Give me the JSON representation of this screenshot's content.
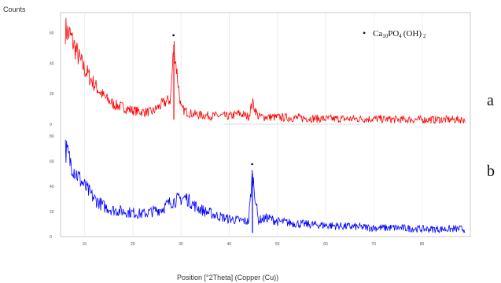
{
  "figure": {
    "ylabel": "Counts",
    "xlabel": "Position [°2Theta] (Copper (Cu))",
    "legend": {
      "marker": "•",
      "formula_base": "Ca",
      "formula_sub1": "10",
      "formula_mid": "PO",
      "formula_sub2": "4",
      "formula_end": "(OH)",
      "formula_sub3": "2"
    },
    "side_labels": [
      "a",
      "b"
    ]
  },
  "chart_data": [
    {
      "type": "line",
      "name_label": "a",
      "color": "#ff0000",
      "y_ticks": [
        "60",
        "40",
        "20",
        "0"
      ],
      "x": [
        6,
        7,
        8,
        9,
        10,
        12,
        14,
        16,
        18,
        20,
        22,
        24,
        26,
        27,
        27.8,
        28.5,
        30,
        32,
        34,
        36,
        38,
        40,
        42,
        44,
        44.8,
        46,
        50,
        55,
        60,
        65,
        70,
        75,
        80,
        85,
        89
      ],
      "y": [
        62,
        58,
        50,
        42,
        36,
        26,
        18,
        13,
        11,
        9,
        8,
        8,
        13,
        15,
        16,
        52,
        10,
        7,
        6,
        5.5,
        5.5,
        5,
        7,
        5,
        14,
        5,
        4.5,
        4,
        3.5,
        3.5,
        3.5,
        3,
        3,
        3,
        3
      ],
      "peak_marker": {
        "x": 28.5,
        "symbol": "•"
      }
    },
    {
      "type": "line",
      "name_label": "b",
      "color": "#0000ff",
      "y_ticks": [
        "80",
        "60",
        "40",
        "20",
        "0"
      ],
      "x": [
        6,
        7,
        8,
        10,
        12,
        14,
        16,
        18,
        20,
        22,
        24,
        26,
        28,
        30,
        31,
        33,
        35,
        38,
        40,
        42,
        44,
        44.8,
        46,
        48,
        50,
        55,
        60,
        65,
        70,
        75,
        80,
        85,
        89
      ],
      "y": [
        70,
        60,
        52,
        40,
        30,
        24,
        21,
        20,
        19,
        18,
        20,
        22,
        28,
        30,
        31,
        24,
        20,
        16,
        14,
        13,
        12,
        50,
        13,
        15,
        12,
        10,
        9,
        8,
        7,
        7,
        6,
        6,
        6
      ],
      "peak_marker": {
        "x": 44.8,
        "symbol": "•"
      }
    }
  ],
  "x_axis": {
    "range": [
      5,
      90
    ],
    "tick_values": [
      10,
      20,
      30,
      40,
      50,
      60,
      70,
      80
    ],
    "tick_labels": [
      "10",
      "20",
      "30",
      "40",
      "50",
      "60",
      "70",
      "80"
    ]
  }
}
